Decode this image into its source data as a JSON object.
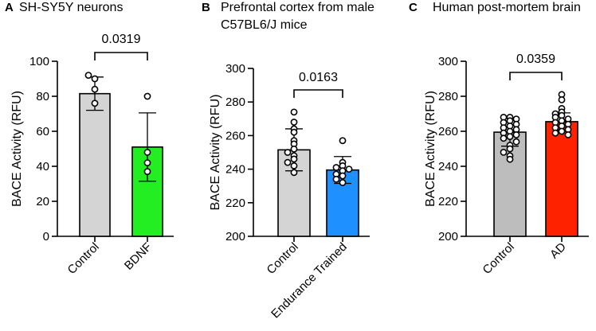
{
  "chart_data": [
    {
      "type": "bar",
      "panel": "A",
      "title_lines": [
        "SH-SY5Y neurons"
      ],
      "ylabel": "BACE Activity (RFU)",
      "ylim": [
        0,
        100
      ],
      "yticks": [
        0,
        20,
        40,
        60,
        80,
        100
      ],
      "categories": [
        "Control",
        "BDNF"
      ],
      "values": [
        81.5,
        51
      ],
      "errors": [
        9.5,
        19.5
      ],
      "colors": [
        "#d4d4d4",
        "#22ee22"
      ],
      "points": [
        [
          90,
          84,
          76,
          92
        ],
        [
          80,
          48,
          42,
          37
        ]
      ],
      "significance": {
        "pairs": [
          0,
          1
        ],
        "label": "0.0319"
      }
    },
    {
      "type": "bar",
      "panel": "B",
      "title_lines": [
        "Prefrontal cortex from male",
        "C57BL6/J mice"
      ],
      "ylabel": "BACE Activity (RFU)",
      "ylim": [
        200,
        300
      ],
      "yticks": [
        200,
        220,
        240,
        260,
        280,
        300
      ],
      "categories": [
        "Control",
        "Endurance Trained"
      ],
      "values": [
        251.5,
        239.5
      ],
      "errors": [
        12.5,
        8
      ],
      "colors": [
        "#d4d4d4",
        "#1e90ff"
      ],
      "points": [
        [
          274,
          268,
          264,
          262,
          257,
          255,
          252,
          250,
          248,
          246,
          244,
          242,
          238
        ],
        [
          257,
          244,
          242,
          241,
          240,
          239,
          237,
          236,
          234,
          232
        ]
      ],
      "significance": {
        "pairs": [
          0,
          1
        ],
        "label": "0.0163"
      }
    },
    {
      "type": "bar",
      "panel": "C",
      "title_lines": [
        "Human post-mortem brain"
      ],
      "ylabel": "BACE Activity (RFU)",
      "ylim": [
        200,
        300
      ],
      "yticks": [
        200,
        220,
        240,
        260,
        280,
        300
      ],
      "categories": [
        "Control",
        "AD"
      ],
      "values": [
        259.5,
        265.5
      ],
      "errors": [
        8,
        5
      ],
      "colors": [
        "#bdbdbd",
        "#ff2200"
      ],
      "points": [
        [
          268,
          268,
          267,
          266,
          265,
          264,
          263,
          262,
          261,
          260,
          259,
          258,
          257,
          256,
          254,
          252,
          250,
          248,
          246,
          244
        ],
        [
          281,
          278,
          273,
          271,
          270,
          269,
          268,
          267,
          266,
          265,
          264,
          263,
          262,
          261,
          260,
          259,
          258
        ]
      ],
      "significance": {
        "pairs": [
          0,
          1
        ],
        "label": "0.0359"
      }
    }
  ]
}
